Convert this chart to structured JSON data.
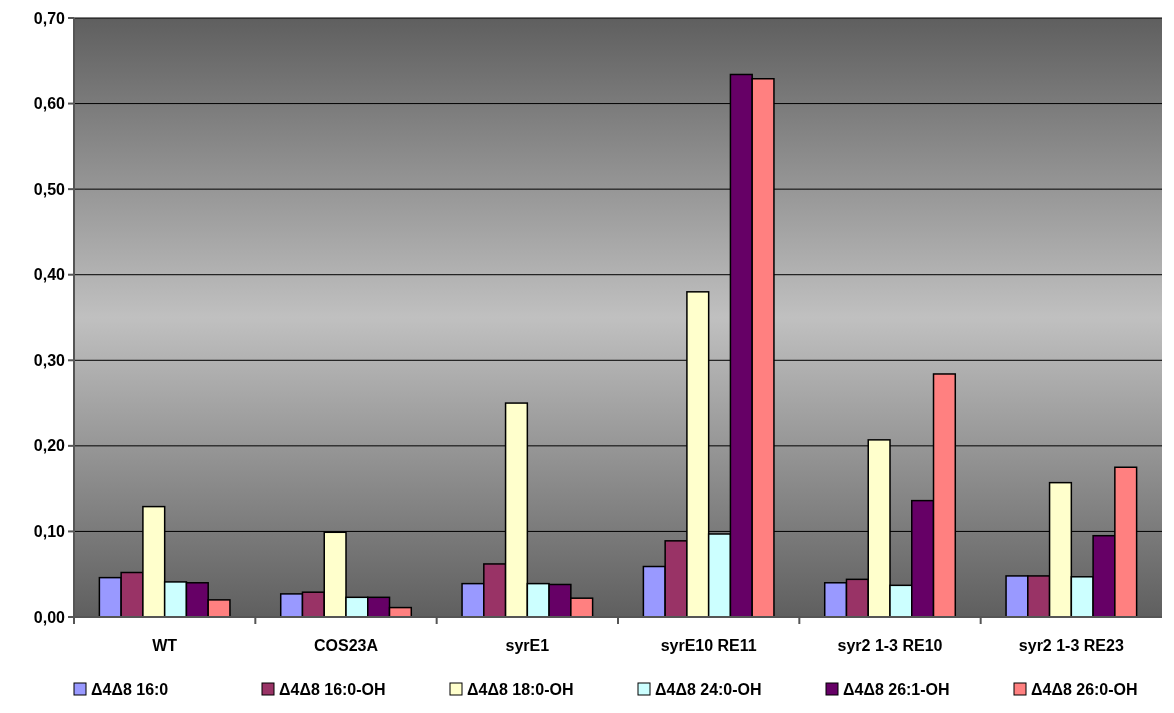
{
  "chart_data": {
    "type": "bar",
    "categories": [
      "WT",
      "COS23A",
      "syrE1",
      "syrE10 RE11",
      "syr2 1-3 RE10",
      "syr2 1-3 RE23"
    ],
    "series": [
      {
        "name": "Δ4Δ8 16:0",
        "color": "#9999ff",
        "values": [
          0.046,
          0.027,
          0.039,
          0.059,
          0.04,
          0.048
        ]
      },
      {
        "name": "Δ4Δ8 16:0-OH",
        "color": "#993366",
        "values": [
          0.052,
          0.029,
          0.062,
          0.089,
          0.044,
          0.048
        ]
      },
      {
        "name": "Δ4Δ8 18:0-OH",
        "color": "#ffffcc",
        "values": [
          0.129,
          0.099,
          0.25,
          0.38,
          0.207,
          0.157
        ]
      },
      {
        "name": "Δ4Δ8 24:0-OH",
        "color": "#ccffff",
        "values": [
          0.041,
          0.023,
          0.039,
          0.097,
          0.037,
          0.047
        ]
      },
      {
        "name": "Δ4Δ8 26:1-OH",
        "color": "#660066",
        "values": [
          0.04,
          0.023,
          0.038,
          0.634,
          0.136,
          0.095
        ]
      },
      {
        "name": "Δ4Δ8 26:0-OH",
        "color": "#ff8080",
        "values": [
          0.02,
          0.011,
          0.022,
          0.629,
          0.284,
          0.175
        ]
      }
    ],
    "ylim": [
      0,
      0.7
    ],
    "yticks": [
      {
        "value": 0,
        "label": "0,00"
      },
      {
        "value": 0.1,
        "label": "0,10"
      },
      {
        "value": 0.2,
        "label": "0,20"
      },
      {
        "value": 0.3,
        "label": "0,30"
      },
      {
        "value": 0.4,
        "label": "0,40"
      },
      {
        "value": 0.5,
        "label": "0,50"
      },
      {
        "value": 0.6,
        "label": "0,60"
      },
      {
        "value": 0.7,
        "label": "0,70"
      }
    ],
    "grid": "y",
    "legend": "bottom"
  }
}
